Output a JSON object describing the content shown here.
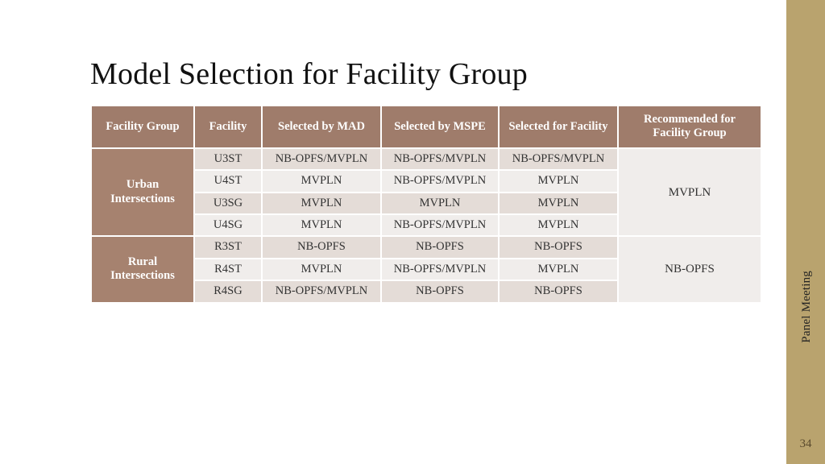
{
  "title": "Model Selection for Facility Group",
  "side_label": "Panel Meeting",
  "page_number": "34",
  "colors": {
    "side_bar": "#b9a36e",
    "table_header_bg": "#9f7c6b",
    "group_label_bg": "#a6826f",
    "row_light": "#f0edeb",
    "row_dark": "#e4dcd7",
    "text_dark": "#333333"
  },
  "table": {
    "columns": [
      "Facility Group",
      "Facility",
      "Selected by MAD",
      "Selected by MSPE",
      "Selected for Facility",
      "Recommended for Facility Group"
    ],
    "groups": [
      {
        "name": "Urban Intersections",
        "recommended": "MVPLN",
        "rows": [
          {
            "facility": "U3ST",
            "mad": "NB-OPFS/MVPLN",
            "mspe": "NB-OPFS/MVPLN",
            "self": "NB-OPFS/MVPLN",
            "shade": "dark"
          },
          {
            "facility": "U4ST",
            "mad": "MVPLN",
            "mspe": "NB-OPFS/MVPLN",
            "self": "MVPLN",
            "shade": "light"
          },
          {
            "facility": "U3SG",
            "mad": "MVPLN",
            "mspe": "MVPLN",
            "self": "MVPLN",
            "shade": "dark"
          },
          {
            "facility": "U4SG",
            "mad": "MVPLN",
            "mspe": "NB-OPFS/MVPLN",
            "self": "MVPLN",
            "shade": "light"
          }
        ]
      },
      {
        "name": "Rural Intersections",
        "recommended": "NB-OPFS",
        "rows": [
          {
            "facility": "R3ST",
            "mad": "NB-OPFS",
            "mspe": "NB-OPFS",
            "self": "NB-OPFS",
            "shade": "dark"
          },
          {
            "facility": "R4ST",
            "mad": "MVPLN",
            "mspe": "NB-OPFS/MVPLN",
            "self": "MVPLN",
            "shade": "light"
          },
          {
            "facility": "R4SG",
            "mad": "NB-OPFS/MVPLN",
            "mspe": "NB-OPFS",
            "self": "NB-OPFS",
            "shade": "dark"
          }
        ]
      }
    ]
  }
}
